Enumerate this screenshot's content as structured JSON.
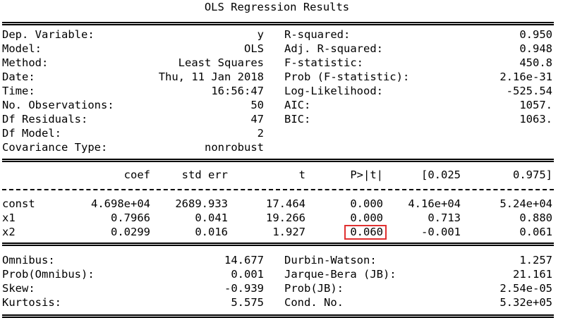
{
  "title": "OLS Regression Results",
  "left_stats": [
    {
      "label": "Dep. Variable:",
      "value": "y"
    },
    {
      "label": "Model:",
      "value": "OLS"
    },
    {
      "label": "Method:",
      "value": "Least Squares"
    },
    {
      "label": "Date:",
      "value": "Thu, 11 Jan 2018"
    },
    {
      "label": "Time:",
      "value": "16:56:47"
    },
    {
      "label": "No. Observations:",
      "value": "50"
    },
    {
      "label": "Df Residuals:",
      "value": "47"
    },
    {
      "label": "Df Model:",
      "value": "2"
    },
    {
      "label": "Covariance Type:",
      "value": "nonrobust"
    }
  ],
  "right_stats": [
    {
      "label": "R-squared:",
      "value": "0.950"
    },
    {
      "label": "Adj. R-squared:",
      "value": "0.948"
    },
    {
      "label": "F-statistic:",
      "value": "450.8"
    },
    {
      "label": "Prob (F-statistic):",
      "value": "2.16e-31"
    },
    {
      "label": "Log-Likelihood:",
      "value": "-525.54"
    },
    {
      "label": "AIC:",
      "value": "1057."
    },
    {
      "label": "BIC:",
      "value": "1063."
    }
  ],
  "coef_table": {
    "headers": [
      "coef",
      "std err",
      "t",
      "P>|t|",
      "[0.025",
      "0.975]"
    ],
    "rows": [
      {
        "name": "const",
        "cells": [
          "4.698e+04",
          "2689.933",
          "17.464",
          "0.000",
          "4.16e+04",
          "5.24e+04"
        ]
      },
      {
        "name": "x1",
        "cells": [
          "0.7966",
          "0.041",
          "19.266",
          "0.000",
          "0.713",
          "0.880"
        ]
      },
      {
        "name": "x2",
        "cells": [
          "0.0299",
          "0.016",
          "1.927",
          "0.060",
          "-0.001",
          "0.061"
        ]
      }
    ],
    "highlight": {
      "row": "x2",
      "column": "P>|t|",
      "color": "#e03030"
    }
  },
  "diagnostics_left": [
    {
      "label": "Omnibus:",
      "value": "14.677"
    },
    {
      "label": "Prob(Omnibus):",
      "value": "0.001"
    },
    {
      "label": "Skew:",
      "value": "-0.939"
    },
    {
      "label": "Kurtosis:",
      "value": "5.575"
    }
  ],
  "diagnostics_right": [
    {
      "label": "Durbin-Watson:",
      "value": "1.257"
    },
    {
      "label": "Jarque-Bera (JB):",
      "value": "21.161"
    },
    {
      "label": "Prob(JB):",
      "value": "2.54e-05"
    },
    {
      "label": "Cond. No.",
      "value": "5.32e+05"
    }
  ]
}
